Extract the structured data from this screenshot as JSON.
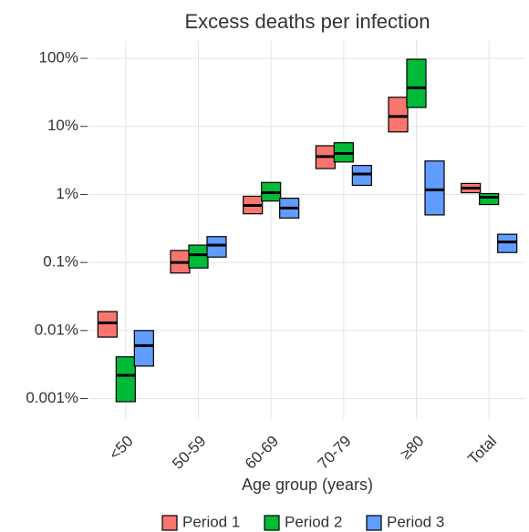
{
  "chart_data": {
    "type": "crossbar",
    "title": "Excess deaths per infection",
    "x_label": "Age group (years)",
    "categories": [
      "<50",
      "50-59",
      "60-69",
      "70-79",
      "≥80",
      "Total"
    ],
    "series": [
      {
        "name": "Period 1",
        "color": "#f8766d",
        "values": [
          0.013,
          0.1,
          0.69,
          3.6,
          14,
          1.24
        ],
        "low": [
          0.008,
          0.07,
          0.52,
          2.4,
          8.3,
          1.06
        ],
        "high": [
          0.019,
          0.15,
          0.94,
          5.2,
          26.8,
          1.45
        ]
      },
      {
        "name": "Period 2",
        "color": "#00ba38",
        "values": [
          0.0022,
          0.13,
          1.06,
          4.0,
          37,
          0.91
        ],
        "low": [
          0.0009,
          0.083,
          0.8,
          3.0,
          19,
          0.71
        ],
        "high": [
          0.0041,
          0.18,
          1.5,
          5.75,
          97,
          1.03
        ]
      },
      {
        "name": "Period 3",
        "color": "#619cff",
        "values": [
          0.006,
          0.18,
          0.63,
          2.0,
          1.17,
          0.2
        ],
        "low": [
          0.003,
          0.12,
          0.45,
          1.36,
          0.5,
          0.14
        ],
        "high": [
          0.01,
          0.24,
          0.88,
          2.67,
          3.1,
          0.26
        ]
      }
    ],
    "log": true,
    "grid": true,
    "legend": "bottom",
    "ylim": [
      0.0005,
      180
    ],
    "yticks": [
      {
        "value": 0.001,
        "label": "0.001%"
      },
      {
        "value": 0.01,
        "label": "0.01%"
      },
      {
        "value": 0.1,
        "label": "0.1%"
      },
      {
        "value": 1,
        "label": "1%"
      },
      {
        "value": 10,
        "label": "10%"
      },
      {
        "value": 100,
        "label": "100%"
      }
    ]
  }
}
